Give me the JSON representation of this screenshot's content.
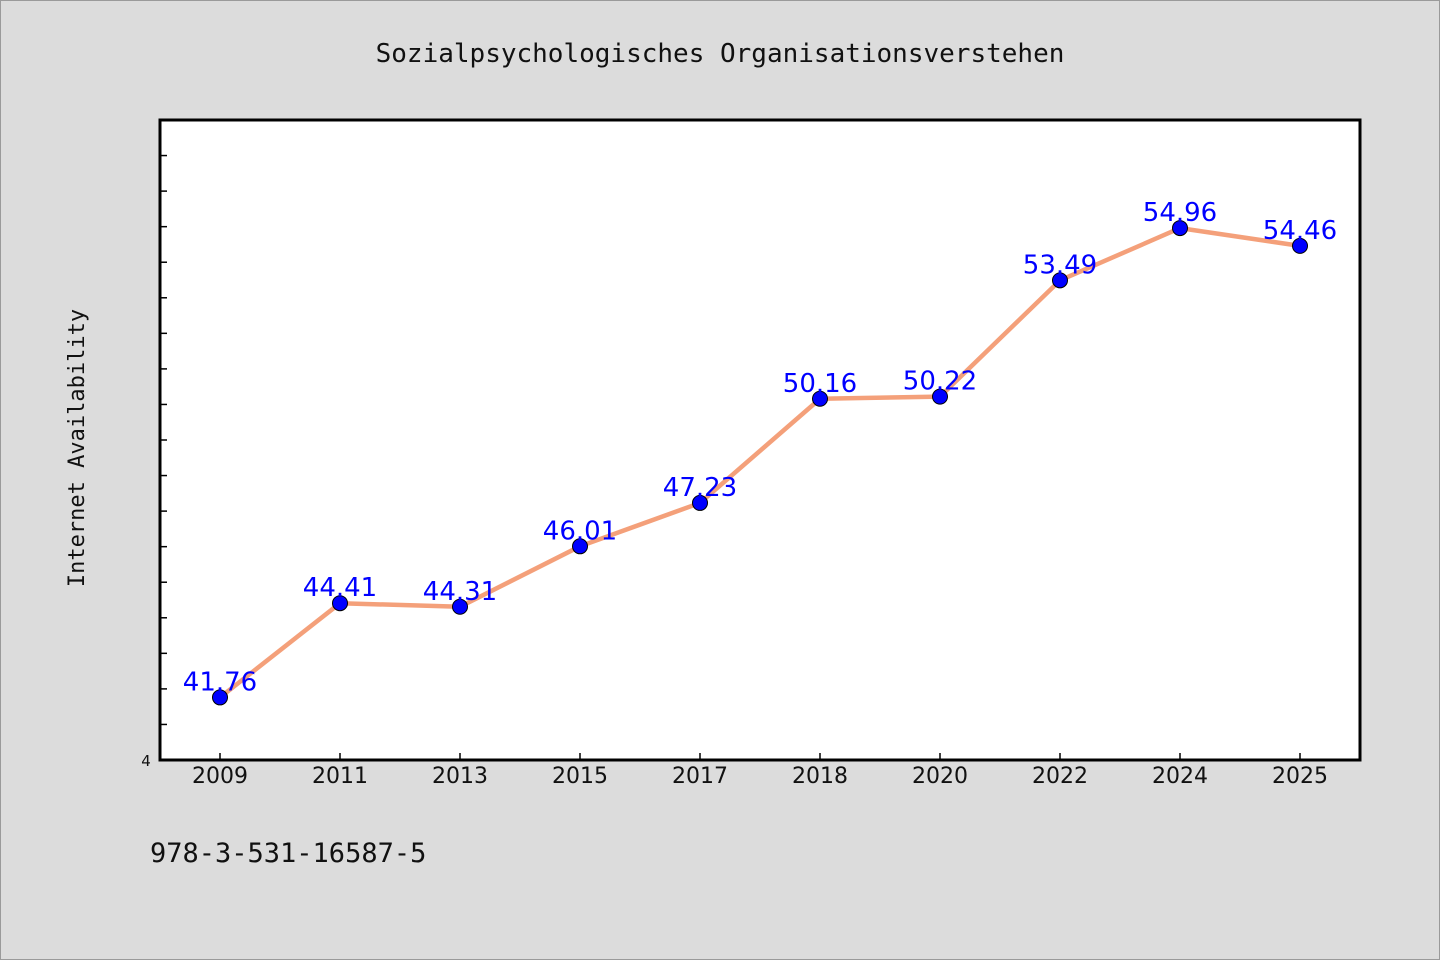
{
  "chart_data": {
    "type": "line",
    "title": "Sozialpsychologisches Organisationsverstehen",
    "xlabel": "",
    "ylabel": "Internet Availability",
    "categories": [
      "2009",
      "2011",
      "2013",
      "2015",
      "2017",
      "2018",
      "2020",
      "2022",
      "2024",
      "2025"
    ],
    "series": [
      {
        "values": [
          41.76,
          44.41,
          44.31,
          46.01,
          47.23,
          50.16,
          50.22,
          53.49,
          54.96,
          54.46
        ],
        "value_labels": [
          "41.76",
          "44.41",
          "44.31",
          "46.01",
          "47.23",
          "50.16",
          "50.22",
          "53.49",
          "54.96",
          "54.46"
        ],
        "line_color": "#f4a07a",
        "marker_color": "#0000ff"
      }
    ],
    "ylim": [
      40,
      58
    ],
    "y_tick_label": "4",
    "grid": false,
    "legend": "none"
  },
  "footer": {
    "isbn": "978-3-531-16587-5"
  },
  "colors": {
    "background": "#dcdcdc",
    "plot_background": "#ffffff",
    "label_color": "#0000ff"
  }
}
